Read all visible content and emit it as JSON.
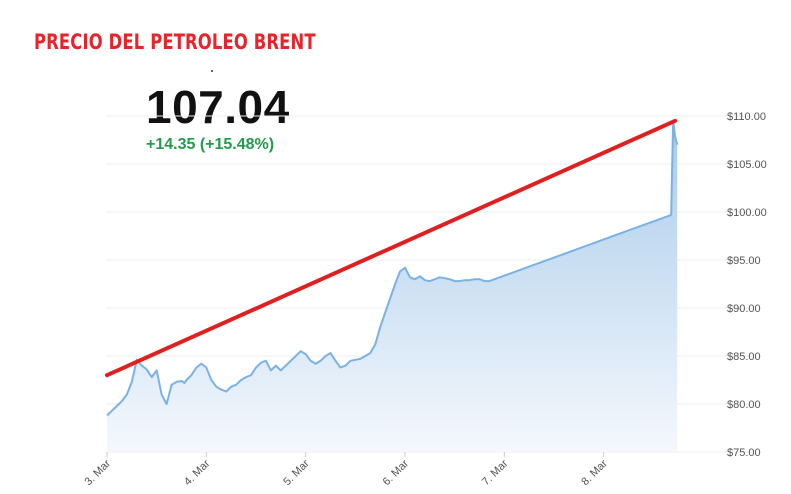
{
  "header": {
    "title": "PRECIO DEL PETROLEO BRENT",
    "price": "107.04",
    "change": "+14.35 (+15.48%)"
  },
  "colors": {
    "title": "#e8232a",
    "change": "#1e9e4a",
    "line": "#7ab2e6",
    "area_top": "#a9cbea",
    "area_bottom": "#f4f8fd",
    "trendline": "#e02020",
    "grid": "#eeeeee"
  },
  "chart_data": {
    "type": "area",
    "y_unit": "$",
    "ylim": [
      75,
      110
    ],
    "y_ticks": [
      "$110.00",
      "$105.00",
      "$100.00",
      "$95.00",
      "$90.00",
      "$85.00",
      "$80.00",
      "$75.00"
    ],
    "y_tick_values": [
      110,
      105,
      100,
      95,
      90,
      85,
      80,
      75
    ],
    "x_ticks": [
      "3. Mar",
      "4. Mar",
      "5. Mar",
      "6. Mar",
      "7. Mar",
      "8. Mar"
    ],
    "x_tick_values": [
      0,
      1,
      2,
      3,
      4,
      5
    ],
    "xlim": [
      -0.02,
      6.02
    ],
    "grid": true,
    "series": [
      {
        "x": [
          0.0,
          0.05,
          0.1,
          0.15,
          0.2,
          0.25,
          0.3,
          0.35,
          0.4,
          0.45,
          0.5,
          0.55,
          0.6,
          0.65,
          0.7,
          0.75,
          0.78,
          0.8,
          0.85,
          0.9,
          0.95,
          1.0,
          1.05,
          1.1,
          1.15,
          1.2,
          1.25,
          1.3,
          1.35,
          1.4,
          1.45,
          1.5,
          1.55,
          1.6,
          1.65,
          1.7,
          1.75,
          1.8,
          1.85,
          1.9,
          1.95,
          2.0,
          2.05,
          2.1,
          2.15,
          2.2,
          2.25,
          2.3,
          2.35,
          2.4,
          2.45,
          2.5,
          2.55,
          2.6,
          2.65,
          2.7,
          2.75,
          2.8,
          2.85,
          2.9,
          2.95,
          3.0,
          3.05,
          3.1,
          3.15,
          3.2,
          3.25,
          3.3,
          3.35,
          3.4,
          3.45,
          3.5,
          3.55,
          3.6,
          3.65,
          3.7,
          3.75,
          3.8,
          3.85,
          5.68,
          5.69,
          5.7,
          5.72,
          5.74
        ],
        "values": [
          78.8,
          79.3,
          79.8,
          80.3,
          81.0,
          82.3,
          84.6,
          84.0,
          83.6,
          82.8,
          83.5,
          81.0,
          80.0,
          82.0,
          82.3,
          82.4,
          82.2,
          82.5,
          83.0,
          83.8,
          84.2,
          83.8,
          82.5,
          81.8,
          81.5,
          81.3,
          81.8,
          82.0,
          82.5,
          82.8,
          83.0,
          83.8,
          84.3,
          84.5,
          83.5,
          84.0,
          83.5,
          84.0,
          84.5,
          85.0,
          85.5,
          85.2,
          84.5,
          84.2,
          84.5,
          85.0,
          85.3,
          84.5,
          83.8,
          84.0,
          84.5,
          84.6,
          84.7,
          85.0,
          85.3,
          86.2,
          88.0,
          89.5,
          91.0,
          92.5,
          93.8,
          94.2,
          93.2,
          93.0,
          93.3,
          92.9,
          92.8,
          93.0,
          93.2,
          93.1,
          93.0,
          92.8,
          92.8,
          92.9,
          92.9,
          93.0,
          93.0,
          92.8,
          92.8,
          99.7,
          105.0,
          109.5,
          107.8,
          107.0
        ]
      }
    ],
    "trendline": {
      "x": [
        0.0,
        5.72
      ],
      "y": [
        83.0,
        109.5
      ]
    }
  }
}
